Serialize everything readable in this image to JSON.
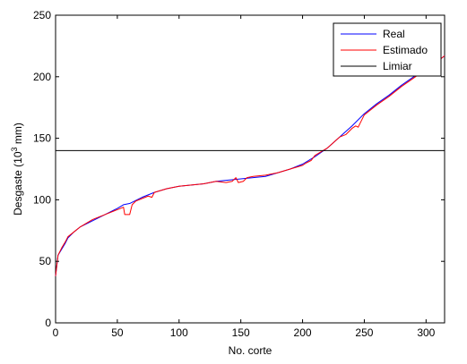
{
  "chart_data": {
    "type": "line",
    "xlabel": "No. corte",
    "ylabel": {
      "prefix": "Desgaste  (10",
      "exponent": "3",
      "suffix": " mm)"
    },
    "xlim": [
      0,
      315
    ],
    "ylim": [
      0,
      250
    ],
    "xticks": [
      "0",
      "50",
      "100",
      "150",
      "200",
      "250",
      "300"
    ],
    "yticks": [
      "0",
      "50",
      "100",
      "150",
      "200",
      "250"
    ],
    "legend_position": "top-right",
    "grid": false,
    "series": [
      {
        "name": "Real",
        "color": "#0000ff",
        "points": [
          [
            0,
            38
          ],
          [
            2,
            55
          ],
          [
            5,
            60
          ],
          [
            8,
            65
          ],
          [
            10,
            69
          ],
          [
            15,
            74
          ],
          [
            20,
            78
          ],
          [
            30,
            83
          ],
          [
            40,
            88
          ],
          [
            50,
            93
          ],
          [
            55,
            96
          ],
          [
            60,
            97
          ],
          [
            70,
            102
          ],
          [
            80,
            106
          ],
          [
            90,
            109
          ],
          [
            100,
            111
          ],
          [
            110,
            112
          ],
          [
            120,
            113
          ],
          [
            130,
            115
          ],
          [
            140,
            116
          ],
          [
            150,
            117
          ],
          [
            160,
            118
          ],
          [
            170,
            119
          ],
          [
            180,
            122
          ],
          [
            190,
            125
          ],
          [
            200,
            129
          ],
          [
            210,
            135
          ],
          [
            220,
            142
          ],
          [
            230,
            151
          ],
          [
            240,
            160
          ],
          [
            250,
            170
          ],
          [
            260,
            178
          ],
          [
            270,
            185
          ],
          [
            280,
            193
          ],
          [
            290,
            200
          ],
          [
            300,
            206
          ],
          [
            310,
            213
          ],
          [
            315,
            217
          ]
        ]
      },
      {
        "name": "Estimado",
        "color": "#ff0000",
        "points": [
          [
            0,
            38
          ],
          [
            2,
            55
          ],
          [
            5,
            61
          ],
          [
            8,
            66
          ],
          [
            10,
            70
          ],
          [
            15,
            74
          ],
          [
            20,
            78
          ],
          [
            30,
            84
          ],
          [
            40,
            88
          ],
          [
            50,
            92
          ],
          [
            55,
            94
          ],
          [
            56,
            88
          ],
          [
            60,
            88
          ],
          [
            62,
            96
          ],
          [
            65,
            99
          ],
          [
            70,
            101
          ],
          [
            75,
            103
          ],
          [
            78,
            102
          ],
          [
            80,
            106
          ],
          [
            90,
            109
          ],
          [
            100,
            111
          ],
          [
            110,
            112
          ],
          [
            120,
            113
          ],
          [
            130,
            115
          ],
          [
            138,
            114
          ],
          [
            143,
            115
          ],
          [
            146,
            118
          ],
          [
            148,
            114
          ],
          [
            152,
            115
          ],
          [
            155,
            118
          ],
          [
            160,
            119
          ],
          [
            170,
            120
          ],
          [
            180,
            122
          ],
          [
            190,
            125
          ],
          [
            200,
            128
          ],
          [
            203,
            130
          ],
          [
            207,
            132
          ],
          [
            210,
            136
          ],
          [
            220,
            142
          ],
          [
            230,
            151
          ],
          [
            235,
            153
          ],
          [
            240,
            158
          ],
          [
            243,
            160
          ],
          [
            245,
            159
          ],
          [
            247,
            163
          ],
          [
            250,
            169
          ],
          [
            260,
            177
          ],
          [
            270,
            184
          ],
          [
            280,
            192
          ],
          [
            290,
            199
          ],
          [
            300,
            206
          ],
          [
            310,
            213
          ],
          [
            315,
            217
          ]
        ]
      },
      {
        "name": "Limiar",
        "color": "#000000",
        "points": [
          [
            0,
            140
          ],
          [
            315,
            140
          ]
        ]
      }
    ]
  }
}
